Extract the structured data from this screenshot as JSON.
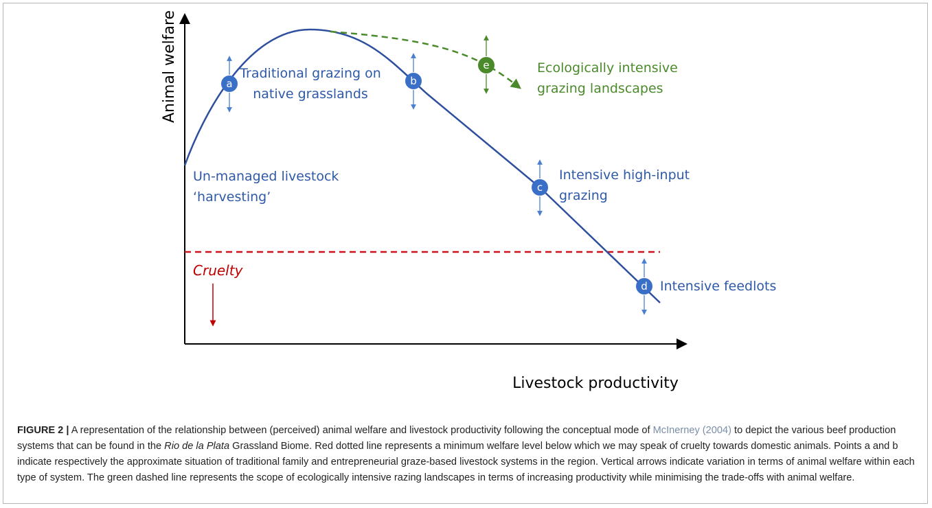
{
  "figure": {
    "y_axis_label": "Animal welfare",
    "x_axis_label": "Livestock productivity",
    "points": [
      {
        "marker": "a",
        "label": "Traditional grazing on",
        "label2": "native grasslands"
      },
      {
        "marker": "b"
      },
      {
        "marker": "c",
        "label": "Intensive high-input",
        "label2": "grazing"
      },
      {
        "marker": "d",
        "label": "Intensive feedlots"
      },
      {
        "marker": "e",
        "label": "Ecologically intensive",
        "label2": "grazing landscapes"
      }
    ],
    "start_label": "Un-managed livestock",
    "start_label2": "‘harvesting’",
    "threshold_label": "Cruelty"
  },
  "caption": {
    "label": "FIGURE 2 |",
    "parts": [
      " A representation of the relationship between (perceived) animal welfare and livestock productivity following the conceptual mode of ",
      "McInerney (2004)",
      " to depict the various beef production systems that can be found in the ",
      "Rio de la Plata",
      " Grassland Biome. Red dotted line represents a minimum welfare level below which we may speak of cruelty towards domestic animals. Points a and b indicate respectively the approximate situation of traditional family and entrepreneurial graze-based livestock systems in the region. Vertical arrows indicate variation in terms of animal welfare within each type of system. The green dashed line represents the scope of ecologically intensive razing landscapes in terms of increasing productivity while minimising the trade-offs with animal welfare."
    ]
  }
}
